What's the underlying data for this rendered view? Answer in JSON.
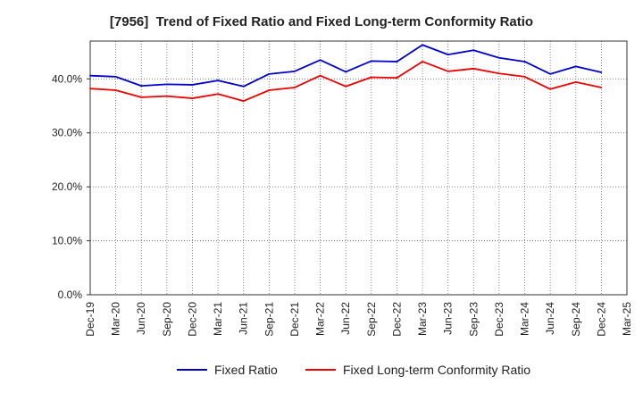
{
  "chart_data": {
    "type": "line",
    "title": "[7956]  Trend of Fixed Ratio and Fixed Long-term Conformity Ratio",
    "xlabel": "",
    "ylabel": "",
    "ylim": [
      0,
      47
    ],
    "grid": true,
    "legend_position": "bottom",
    "y_tick_values": [
      0,
      10,
      20,
      30,
      40
    ],
    "y_tick_labels": [
      "0.0%",
      "10.0%",
      "20.0%",
      "30.0%",
      "40.0%"
    ],
    "x_tick_labels": [
      "Dec-19",
      "Mar-20",
      "Jun-20",
      "Sep-20",
      "Dec-20",
      "Mar-21",
      "Jun-21",
      "Sep-21",
      "Dec-21",
      "Mar-22",
      "Jun-22",
      "Sep-22",
      "Dec-22",
      "Mar-23",
      "Jun-23",
      "Sep-23",
      "Dec-23",
      "Mar-24",
      "Jun-24",
      "Sep-24",
      "Dec-24",
      "Mar-25"
    ],
    "x": [
      "Dec-19",
      "Mar-20",
      "Jun-20",
      "Sep-20",
      "Dec-20",
      "Mar-21",
      "Jun-21",
      "Sep-21",
      "Dec-21",
      "Mar-22",
      "Jun-22",
      "Sep-22",
      "Dec-22",
      "Mar-23",
      "Jun-23",
      "Sep-23",
      "Dec-23",
      "Mar-24",
      "Jun-24",
      "Sep-24",
      "Dec-24"
    ],
    "series": [
      {
        "name": "Fixed Ratio",
        "color": "#0000cc",
        "values": [
          40.6,
          40.4,
          38.7,
          39.0,
          38.9,
          39.7,
          38.6,
          40.9,
          41.4,
          43.5,
          41.3,
          43.3,
          43.2,
          46.3,
          44.5,
          45.3,
          43.9,
          43.2,
          40.9,
          42.3,
          41.2
        ]
      },
      {
        "name": "Fixed Long-term Conformity Ratio",
        "color": "#ee0000",
        "values": [
          38.2,
          37.9,
          36.6,
          36.8,
          36.4,
          37.2,
          35.9,
          37.9,
          38.4,
          40.6,
          38.6,
          40.3,
          40.2,
          43.2,
          41.4,
          41.9,
          41.0,
          40.4,
          38.1,
          39.4,
          38.4
        ]
      }
    ]
  }
}
